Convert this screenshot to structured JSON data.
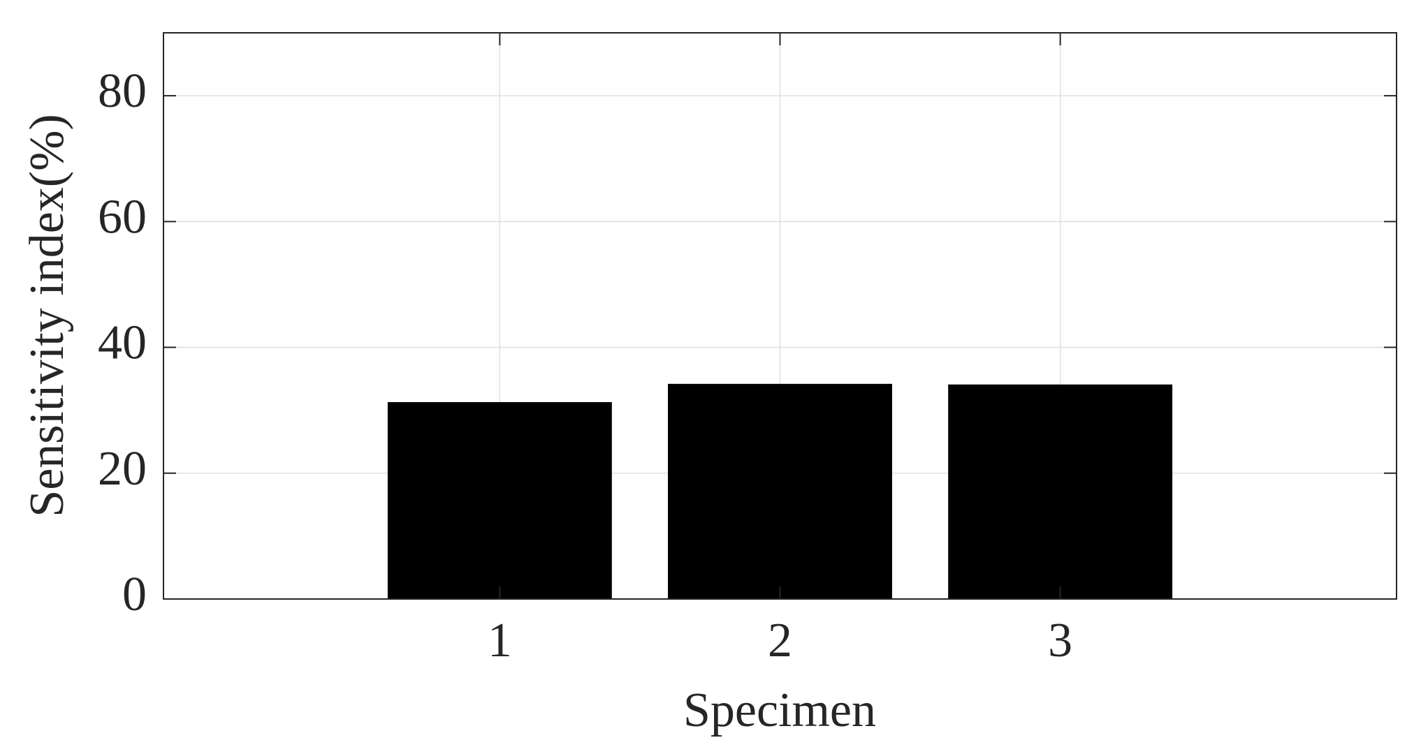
{
  "chart_data": {
    "type": "bar",
    "x_label": "Specimen",
    "y_label": "Sensitivity index(%)",
    "x": [
      1,
      2,
      3
    ],
    "values": [
      31.3,
      34.2,
      34.1
    ],
    "color": "#000000",
    "bar_width": 0.8,
    "xlim": [
      -0.2,
      4.2
    ],
    "xticks": [
      1,
      2,
      3
    ],
    "ylim": [
      0,
      90
    ],
    "yticks": [
      0,
      20,
      40,
      60,
      80
    ],
    "grid": true
  }
}
